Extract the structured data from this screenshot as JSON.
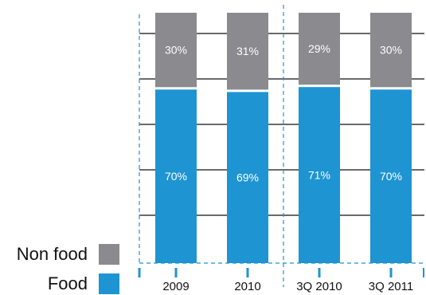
{
  "colors": {
    "food": "#1f94d2",
    "nonfood": "#8a8a8f",
    "grid": "#111111",
    "axis": "#1f94d2"
  },
  "chart_data": {
    "type": "bar",
    "stacked": true,
    "categories": [
      "2009",
      "2010",
      "3Q 2010",
      "3Q 2011"
    ],
    "series": [
      {
        "name": "Food",
        "values": [
          70,
          69,
          71,
          70
        ],
        "labels": [
          "70%",
          "69%",
          "71%",
          "70%"
        ]
      },
      {
        "name": "Non food",
        "values": [
          30,
          31,
          29,
          30
        ],
        "labels": [
          "30%",
          "31%",
          "29%",
          "30%"
        ]
      }
    ],
    "ylim": [
      0,
      100
    ],
    "grid": true,
    "legend": {
      "position": "bottom-left",
      "order": [
        "Non food",
        "Food"
      ]
    }
  }
}
